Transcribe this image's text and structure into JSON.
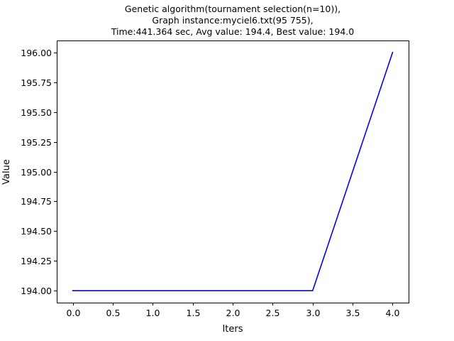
{
  "chart_data": {
    "type": "line",
    "title_lines": [
      "Genetic algorithm(tournament selection(n=10)),",
      "Graph instance:myciel6.txt(95 755),",
      "Time:441.364 sec, Avg value: 194.4, Best value: 194.0"
    ],
    "xlabel": "Iters",
    "ylabel": "Value",
    "xlim": [
      -0.2,
      4.2
    ],
    "ylim": [
      193.9,
      196.1
    ],
    "xticks": [
      0.0,
      0.5,
      1.0,
      1.5,
      2.0,
      2.5,
      3.0,
      3.5,
      4.0
    ],
    "xtick_labels": [
      "0.0",
      "0.5",
      "1.0",
      "1.5",
      "2.0",
      "2.5",
      "3.0",
      "3.5",
      "4.0"
    ],
    "yticks": [
      194.0,
      194.25,
      194.5,
      194.75,
      195.0,
      195.25,
      195.5,
      195.75,
      196.0
    ],
    "ytick_labels": [
      "194.00",
      "194.25",
      "194.50",
      "194.75",
      "195.00",
      "195.25",
      "195.50",
      "195.75",
      "196.00"
    ],
    "grid": false,
    "series": [
      {
        "x": [
          0,
          1,
          2,
          3,
          4
        ],
        "values": [
          194.0,
          194.0,
          194.0,
          194.0,
          196.0
        ],
        "color": "#0000ff"
      }
    ]
  }
}
